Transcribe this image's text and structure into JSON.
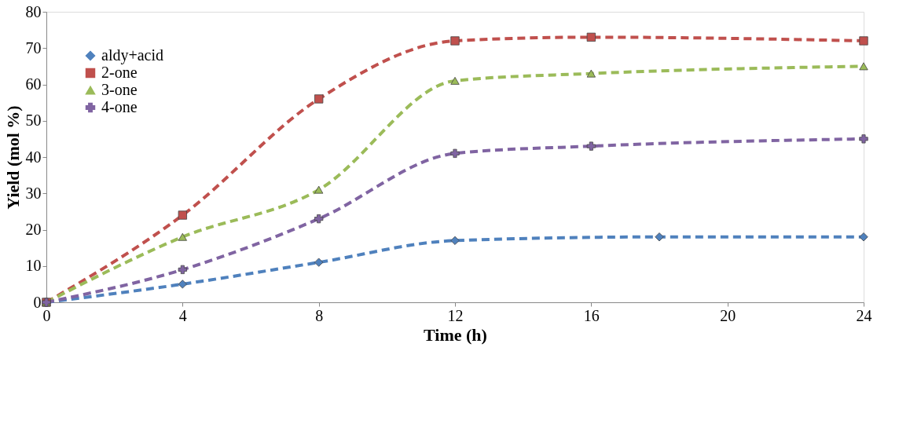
{
  "chart_data": {
    "type": "line",
    "xlabel": "Time (h)",
    "ylabel": "Yield (mol %)",
    "xlim": [
      0,
      24
    ],
    "xticks": [
      0,
      4,
      8,
      12,
      16,
      20,
      24
    ],
    "ylim": [
      0,
      80
    ],
    "yticks": [
      0,
      10,
      20,
      30,
      40,
      50,
      60,
      70,
      80
    ],
    "grid": false,
    "legend": "top left",
    "line_style": "dashed",
    "series": [
      {
        "name": "aldy+acid",
        "color": "#4f81bd",
        "marker": "diamond",
        "x": [
          0,
          4,
          8,
          12,
          18,
          24
        ],
        "values": [
          0,
          5,
          11,
          17,
          18,
          18
        ]
      },
      {
        "name": "2-one",
        "color": "#c0504d",
        "marker": "square",
        "x": [
          0,
          4,
          8,
          12,
          16,
          24
        ],
        "values": [
          0,
          24,
          56,
          72,
          73,
          72
        ]
      },
      {
        "name": "3-one",
        "color": "#9bbb59",
        "marker": "triangle",
        "x": [
          0,
          4,
          8,
          12,
          16,
          24
        ],
        "values": [
          0,
          18,
          31,
          61,
          63,
          65
        ]
      },
      {
        "name": "4-one",
        "color": "#8064a2",
        "marker": "cross",
        "x": [
          0,
          4,
          8,
          12,
          16,
          24
        ],
        "values": [
          0,
          9,
          23,
          41,
          43,
          45
        ]
      }
    ]
  }
}
